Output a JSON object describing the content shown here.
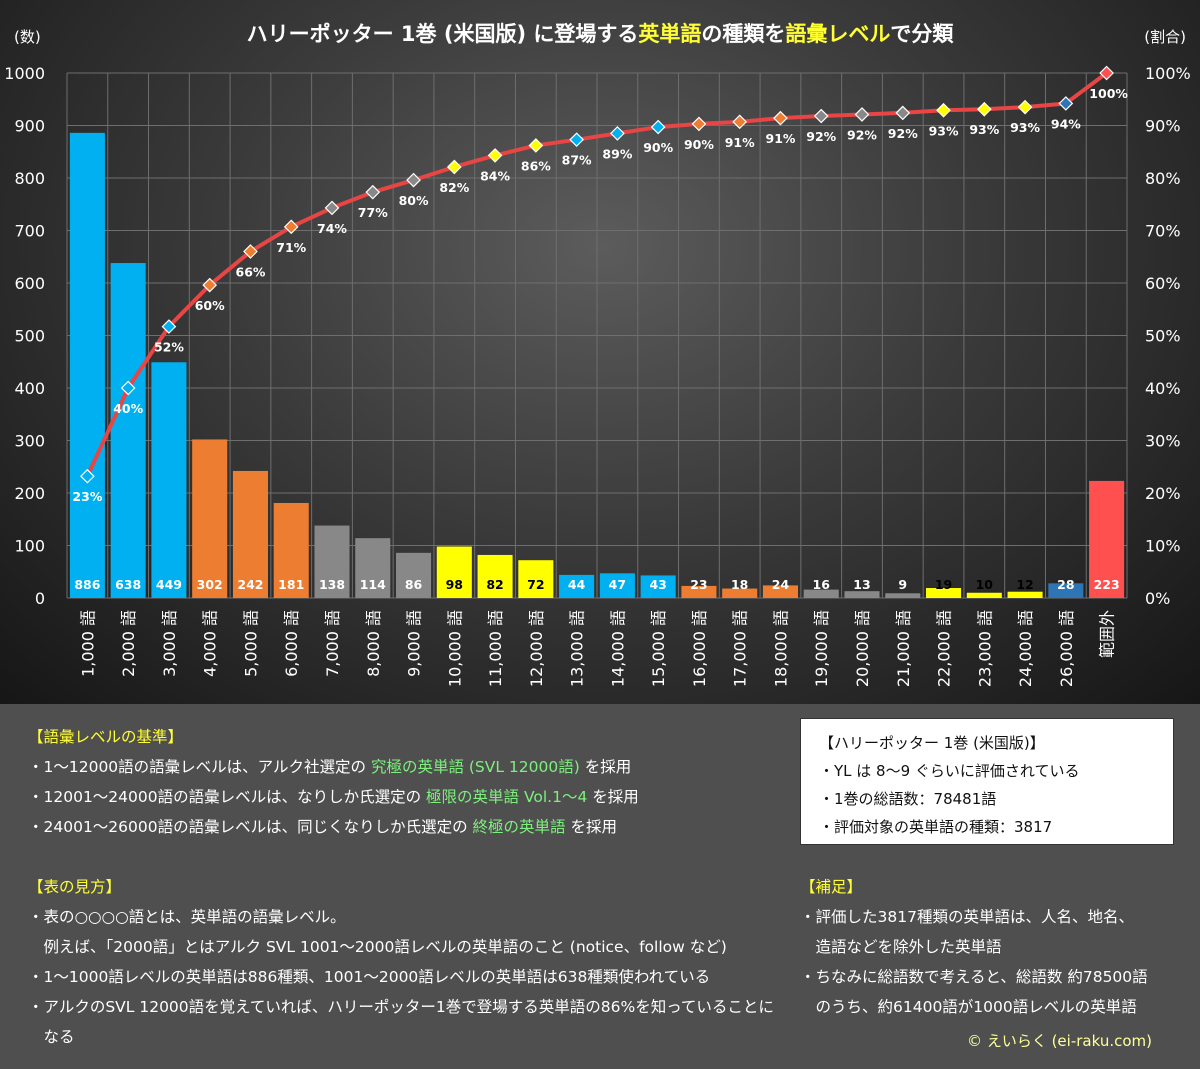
{
  "title": {
    "part1": "ハリーポッター 1巻 (米国版) に登場する",
    "part2": "英単語",
    "part3": "の種類を",
    "part4": "語彙レベル",
    "part5": "で分類"
  },
  "units": {
    "left": "(数)",
    "right": "(割合)"
  },
  "colors": {
    "blue": "#00b0f0",
    "orange": "#ed7d31",
    "gray": "#888888",
    "yellow": "#ffff00",
    "darkblue": "#2e75b6",
    "red": "#ff5050",
    "line": "#e84545"
  },
  "chart_data": {
    "type": "bar",
    "title": "ハリーポッター 1巻 (米国版) に登場する英単語の種類を語彙レベルで分類",
    "ylabel": "(数)",
    "y2label": "(割合)",
    "ylim": [
      0,
      1000
    ],
    "y2lim": [
      0,
      100
    ],
    "yticks": [
      "0",
      "100",
      "200",
      "300",
      "400",
      "500",
      "600",
      "700",
      "800",
      "900",
      "1000"
    ],
    "y2ticks": [
      "0%",
      "10%",
      "20%",
      "30%",
      "40%",
      "50%",
      "60%",
      "70%",
      "80%",
      "90%",
      "100%"
    ],
    "categories": [
      "1,000 語",
      "2,000 語",
      "3,000 語",
      "4,000 語",
      "5,000 語",
      "6,000 語",
      "7,000 語",
      "8,000 語",
      "9,000 語",
      "10,000 語",
      "11,000 語",
      "12,000 語",
      "13,000 語",
      "14,000 語",
      "15,000 語",
      "16,000 語",
      "17,000 語",
      "18,000 語",
      "19,000 語",
      "20,000 語",
      "21,000 語",
      "22,000 語",
      "23,000 語",
      "24,000 語",
      "26,000 語",
      "範囲外"
    ],
    "values": [
      886,
      638,
      449,
      302,
      242,
      181,
      138,
      114,
      86,
      98,
      82,
      72,
      44,
      47,
      43,
      23,
      18,
      24,
      16,
      13,
      9,
      19,
      10,
      12,
      28,
      223
    ],
    "value_labels": [
      "886",
      "638",
      "449",
      "302",
      "242",
      "181",
      "138",
      "114",
      "86",
      "98",
      "82",
      "72",
      "44",
      "47",
      "43",
      "23",
      "18",
      "24",
      "16",
      "13",
      "9",
      "19",
      "10",
      "12",
      "28",
      "223"
    ],
    "bar_colors": [
      "blue",
      "blue",
      "blue",
      "orange",
      "orange",
      "orange",
      "gray",
      "gray",
      "gray",
      "yellow",
      "yellow",
      "yellow",
      "blue",
      "blue",
      "blue",
      "orange",
      "orange",
      "orange",
      "gray",
      "gray",
      "gray",
      "yellow",
      "yellow",
      "yellow",
      "darkblue",
      "red"
    ],
    "cumulative_pct": [
      23.2,
      40.0,
      51.7,
      59.6,
      66.0,
      70.7,
      74.3,
      77.3,
      79.6,
      82.1,
      84.3,
      86.2,
      87.3,
      88.5,
      89.7,
      90.3,
      90.7,
      91.4,
      91.8,
      92.1,
      92.4,
      92.9,
      93.1,
      93.5,
      94.2,
      100.0
    ],
    "cumulative_labels": [
      "23%",
      "40%",
      "52%",
      "60%",
      "66%",
      "71%",
      "74%",
      "77%",
      "80%",
      "82%",
      "84%",
      "86%",
      "87%",
      "89%",
      "90%",
      "90%",
      "91%",
      "91%",
      "92%",
      "92%",
      "92%",
      "93%",
      "93%",
      "93%",
      "94%",
      "100%"
    ]
  },
  "notes": {
    "criteria_header": "【語彙レベルの基準】",
    "criteria_1a": "・1～12000語の語彙レベルは、アルク社選定の ",
    "criteria_1b": "究極の英単語 (SVL 12000語)",
    "criteria_1c": " を採用",
    "criteria_2a": "・12001～24000語の語彙レベルは、なりしか氏選定の ",
    "criteria_2b": "極限の英単語 Vol.1～4",
    "criteria_2c": " を採用",
    "criteria_3a": "・24001～26000語の語彙レベルは、同じくなりしか氏選定の ",
    "criteria_3b": "終極の英単語",
    "criteria_3c": " を採用",
    "howto_header": "【表の見方】",
    "howto_1": "・表の○○○○語とは、英単語の語彙レベル。",
    "howto_2": "　例えば、「2000語」とはアルク SVL 1001～2000語レベルの英単語のこと (notice、follow など)",
    "howto_3": "・1～1000語レベルの英単語は886種類、1001～2000語レベルの英単語は638種類使われている",
    "howto_4": "・アルクのSVL 12000語を覚えていれば、ハリーポッター1巻で登場する英単語の86%を知っていることに",
    "howto_5": "　なる",
    "supp_header": "【補足】",
    "supp_1": "・評価した3817種類の英単語は、人名、地名、",
    "supp_2": "　造語などを除外した英単語",
    "supp_3": "・ちなみに総語数で考えると、総語数 約78500語",
    "supp_4": "　のうち、約61400語が1000語レベルの英単語"
  },
  "infobox": {
    "title": "【ハリーポッター 1巻 (米国版)】",
    "line1": "・YL は 8～9 ぐらいに評価されている",
    "line2": "・1巻の総語数：78481語",
    "line3": "・評価対象の英単語の種類：3817"
  },
  "copyright": "© えいらく (ei-raku.com)"
}
